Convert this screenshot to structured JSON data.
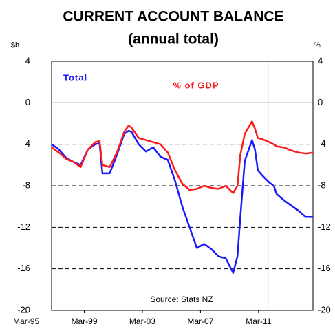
{
  "chart_data": {
    "type": "line",
    "title": "CURRENT ACCOUNT BALANCE",
    "subtitle": "(annual total)",
    "y_axis_label": "$b",
    "y2_axis_label": "%",
    "annotation": "Source: Stats NZ",
    "x": [
      1997,
      1997.5,
      1998,
      1998.5,
      1999,
      1999.5,
      2000,
      2000.3,
      2000.5,
      2001,
      2001.5,
      2002,
      2002.3,
      2002.5,
      2003,
      2003.5,
      2004,
      2004.5,
      2005,
      2005.5,
      2006,
      2006.5,
      2007,
      2007.5,
      2008,
      2008.5,
      2009,
      2009.5,
      2009.8,
      2010,
      2010.3,
      2010.8,
      2011,
      2011.2,
      2011.5,
      2012,
      2012.3,
      2012.5,
      2013,
      2013.5,
      2014,
      2014.5,
      2015
    ],
    "series": [
      {
        "name": "Total",
        "color": "#1a1aff",
        "values": [
          -4.0,
          -4.5,
          -5.3,
          -5.7,
          -6.0,
          -4.5,
          -4.0,
          -3.9,
          -6.8,
          -6.8,
          -5.0,
          -3.0,
          -2.7,
          -2.8,
          -4.0,
          -4.7,
          -4.3,
          -5.2,
          -5.5,
          -7.5,
          -10.0,
          -12.0,
          -14.0,
          -13.6,
          -14.1,
          -14.8,
          -15.0,
          -16.4,
          -14.8,
          -11.0,
          -5.6,
          -3.6,
          -4.5,
          -6.5,
          -7.0,
          -7.7,
          -8.0,
          -8.8,
          -9.4,
          -9.9,
          -10.4,
          -11.0,
          -11.0
        ]
      },
      {
        "name": "% of GDP",
        "color": "#ff1a1a",
        "axis": "y2",
        "values": [
          -4.3,
          -4.8,
          -5.4,
          -5.7,
          -6.2,
          -4.5,
          -3.8,
          -3.7,
          -6.0,
          -6.2,
          -4.8,
          -2.8,
          -2.2,
          -2.4,
          -3.4,
          -3.6,
          -3.8,
          -4.0,
          -4.8,
          -6.5,
          -7.8,
          -8.4,
          -8.3,
          -8.0,
          -8.2,
          -8.3,
          -8.0,
          -8.7,
          -8.0,
          -5.0,
          -3.0,
          -1.8,
          -2.5,
          -3.4,
          -3.5,
          -3.8,
          -4.0,
          -4.2,
          -4.3,
          -4.6,
          -4.8,
          -4.9,
          -4.8
        ]
      }
    ],
    "forecast_line_x": 2011.9,
    "xlim": [
      1997,
      2015
    ],
    "xticks": [
      {
        "value": 1995.25,
        "label": "Mar-95"
      },
      {
        "value": 1999.25,
        "label": "Mar-99"
      },
      {
        "value": 2003.25,
        "label": "Mar-03"
      },
      {
        "value": 2007.25,
        "label": "Mar-07"
      },
      {
        "value": 2011.25,
        "label": "Mar-11"
      }
    ],
    "ylim": [
      -20,
      4
    ],
    "yticks": [
      4,
      0,
      -4,
      -8,
      -12,
      -16,
      -20
    ],
    "y2lim": [
      -20,
      4
    ],
    "y2ticks": [
      4,
      0,
      -4,
      -8,
      -12,
      -16,
      -20
    ],
    "grid": true
  }
}
